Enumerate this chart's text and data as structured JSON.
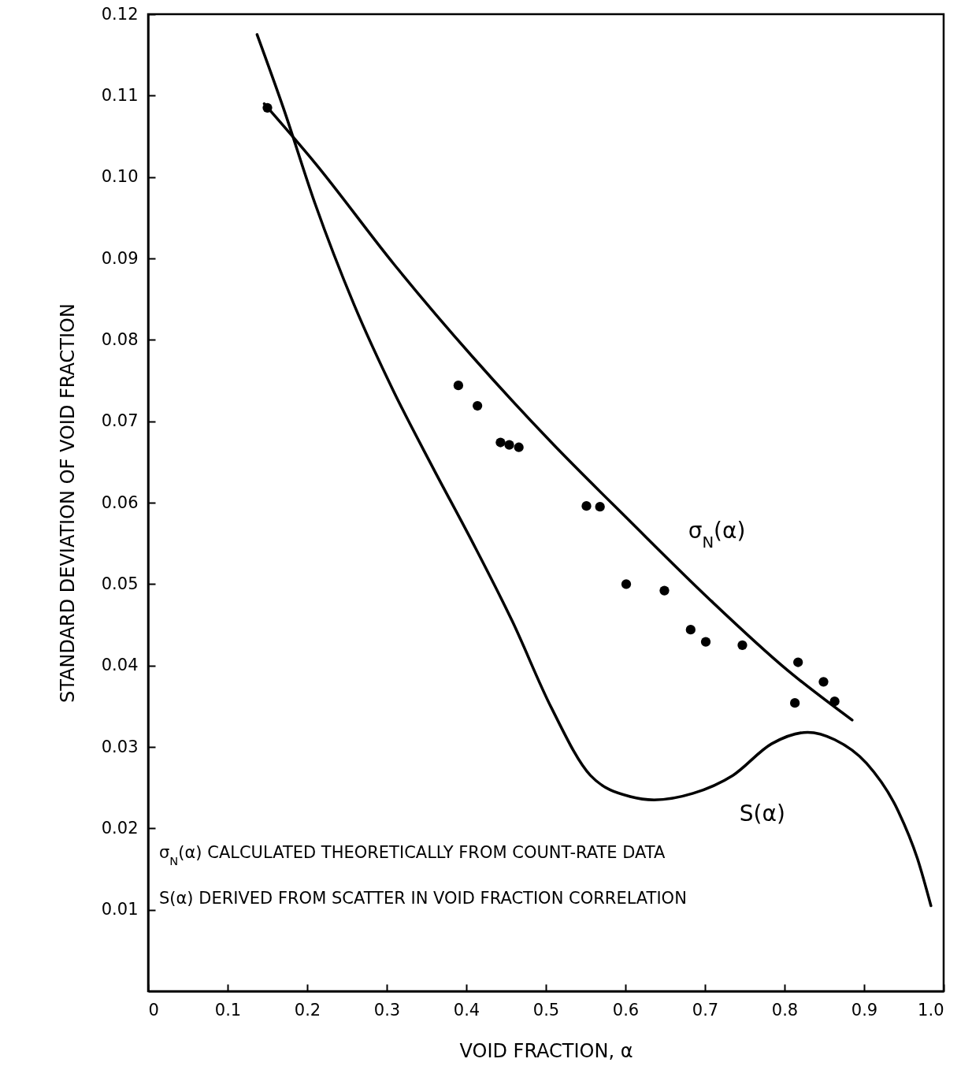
{
  "chart_data": {
    "type": "line",
    "xlabel": "VOID FRACTION, α",
    "ylabel": "STANDARD DEVIATION OF VOID FRACTION",
    "xlim": [
      0,
      1
    ],
    "xticks": [
      0,
      0.1,
      0.2,
      0.3,
      0.4,
      0.5,
      0.6,
      0.7,
      0.8,
      0.9,
      {
        "value": 1,
        "label": "1.0"
      }
    ],
    "ylim": [
      0,
      0.12
    ],
    "yticks": [
      0.01,
      0.02,
      0.03,
      0.04,
      0.05,
      0.06,
      0.07,
      0.08,
      0.09,
      {
        "value": 0.1,
        "label": "0.10"
      },
      0.11,
      0.12
    ],
    "series": [
      {
        "name": "σ$_{N}$(α)",
        "color": "#000000",
        "x": [
          0.146,
          0.21,
          0.309,
          0.408,
          0.507,
          0.606,
          0.705,
          0.804,
          0.885
        ],
        "values": [
          0.109,
          0.1017,
          0.0893,
          0.0779,
          0.0674,
          0.0577,
          0.0482,
          0.0394,
          0.0333
        ]
      },
      {
        "name": "S(α)",
        "color": "#000000",
        "x": [
          0.137,
          0.17,
          0.21,
          0.259,
          0.309,
          0.358,
          0.408,
          0.458,
          0.507,
          0.556,
          0.606,
          0.636,
          0.685,
          0.735,
          0.784,
          0.829,
          0.863,
          0.903,
          0.943,
          0.967,
          0.984
        ],
        "values": [
          0.1175,
          0.1085,
          0.0967,
          0.0843,
          0.0736,
          0.0643,
          0.0551,
          0.0454,
          0.0348,
          0.0265,
          0.0239,
          0.0235,
          0.0243,
          0.0265,
          0.0304,
          0.0318,
          0.0309,
          0.028,
          0.0221,
          0.0163,
          0.0105
        ]
      },
      {
        "type": "scatter",
        "color": "#000000",
        "marker": "circle",
        "x": [
          0.15,
          0.39,
          0.414,
          0.443,
          0.454,
          0.466,
          0.551,
          0.568,
          0.601,
          0.649,
          0.682,
          0.701,
          0.747,
          0.813,
          0.817,
          0.849,
          0.863
        ],
        "values": [
          0.1085,
          0.0744,
          0.0719,
          0.0674,
          0.0671,
          0.0668,
          0.0596,
          0.0595,
          0.05,
          0.0492,
          0.0444,
          0.0429,
          0.0425,
          0.0354,
          0.0404,
          0.038,
          0.0356
        ]
      }
    ],
    "annotations": [
      "σ$_{N}$(α) CALCULATED THEORETICALLY FROM COUNT-RATE DATA",
      "S(α) DERIVED FROM SCATTER IN VOID FRACTION CORRELATION"
    ],
    "tick_labels": true
  }
}
